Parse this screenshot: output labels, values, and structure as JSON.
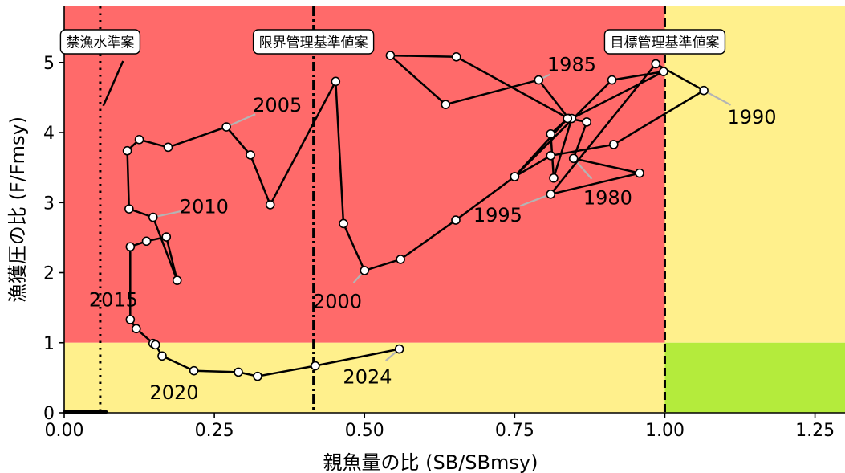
{
  "chart_data": {
    "type": "line",
    "xlabel": "親魚量の比 (SB/SBmsy)",
    "ylabel": "漁獲圧の比 (F/Fmsy)",
    "xlim": [
      0,
      1.3
    ],
    "ylim": [
      0,
      5.8
    ],
    "xticks": [
      0.0,
      0.25,
      0.5,
      0.75,
      1.0,
      1.25
    ],
    "xtick_labels": [
      "0.00",
      "0.25",
      "0.50",
      "0.75",
      "1.00",
      "1.25"
    ],
    "yticks": [
      0,
      1,
      2,
      3,
      4,
      5
    ],
    "ytick_labels": [
      "0",
      "1",
      "2",
      "3",
      "4",
      "5"
    ],
    "colors": {
      "red_zone": "#ff6a6a",
      "yellow_zone": "#fff08c",
      "green_zone": "#b4eb3c",
      "line": "#000000",
      "marker_fill": "#ffffff",
      "leader": "#b4b4b4"
    },
    "reference_lines": [
      {
        "name": "ban-line",
        "x": 0.06,
        "style": "dotted",
        "label": "禁漁水準案"
      },
      {
        "name": "limit-line",
        "x": 0.415,
        "style": "dashdot",
        "label": "限界管理基準値案"
      },
      {
        "name": "target-line",
        "x": 1.0,
        "style": "dashed",
        "label": "目標管理基準値案"
      }
    ],
    "series": [
      {
        "points": [
          [
            0.84,
            4.2
          ],
          [
            0.79,
            4.75
          ],
          [
            0.635,
            4.4
          ],
          [
            0.543,
            5.1
          ],
          [
            0.653,
            5.08
          ],
          [
            0.84,
            4.2
          ],
          [
            0.87,
            4.15
          ],
          [
            0.848,
            3.63
          ],
          [
            0.958,
            3.42
          ],
          [
            0.81,
            3.12
          ],
          [
            0.985,
            4.98
          ],
          [
            1.065,
            4.6
          ],
          [
            0.915,
            3.83
          ],
          [
            0.81,
            3.67
          ],
          [
            0.75,
            3.37
          ],
          [
            0.912,
            4.75
          ],
          [
            0.998,
            4.87
          ],
          [
            0.845,
            4.2
          ],
          [
            0.815,
            3.35
          ],
          [
            0.81,
            3.98
          ],
          [
            0.838,
            4.2
          ],
          [
            0.75,
            3.37
          ],
          [
            0.652,
            2.75
          ],
          [
            0.56,
            2.19
          ],
          [
            0.5,
            2.03
          ],
          [
            0.465,
            2.7
          ],
          [
            0.452,
            4.73
          ],
          [
            0.343,
            2.97
          ],
          [
            0.31,
            3.68
          ],
          [
            0.27,
            4.08
          ],
          [
            0.173,
            3.79
          ],
          [
            0.125,
            3.9
          ],
          [
            0.105,
            3.74
          ],
          [
            0.108,
            2.91
          ],
          [
            0.148,
            2.79
          ],
          [
            0.188,
            1.89
          ],
          [
            0.17,
            2.51
          ],
          [
            0.137,
            2.45
          ],
          [
            0.11,
            2.37
          ],
          [
            0.11,
            1.33
          ],
          [
            0.12,
            1.2
          ],
          [
            0.148,
            0.99
          ],
          [
            0.152,
            0.97
          ],
          [
            0.163,
            0.81
          ],
          [
            0.216,
            0.6
          ],
          [
            0.29,
            0.58
          ],
          [
            0.322,
            0.52
          ],
          [
            0.418,
            0.67
          ],
          [
            0.558,
            0.91
          ]
        ]
      }
    ],
    "stray_segment": [
      [
        0.065,
        4.38
      ],
      [
        0.098,
        5.02
      ]
    ],
    "annotations": [
      {
        "label": "1980",
        "point": [
          0.848,
          3.63
        ],
        "text_at": [
          0.905,
          3.08
        ]
      },
      {
        "label": "1985",
        "point": [
          0.79,
          4.75
        ],
        "text_at": [
          0.845,
          4.98
        ]
      },
      {
        "label": "1990",
        "point": [
          1.065,
          4.6
        ],
        "text_at": [
          1.145,
          4.23
        ]
      },
      {
        "label": "1995",
        "point": [
          0.81,
          3.12
        ],
        "text_at": [
          0.722,
          2.83
        ]
      },
      {
        "label": "2000",
        "point": [
          0.5,
          2.03
        ],
        "text_at": [
          0.455,
          1.6
        ]
      },
      {
        "label": "2005",
        "point": [
          0.27,
          4.08
        ],
        "text_at": [
          0.355,
          4.4
        ]
      },
      {
        "label": "2010",
        "point": [
          0.148,
          2.79
        ],
        "text_at": [
          0.233,
          2.95
        ]
      },
      {
        "label": "2015",
        "point": [
          0.11,
          1.33
        ],
        "text_at": [
          0.082,
          1.62
        ]
      },
      {
        "label": "2020",
        "point": null,
        "text_at": [
          0.183,
          0.3
        ]
      },
      {
        "label": "2024",
        "point": [
          0.558,
          0.91
        ],
        "text_at": [
          0.505,
          0.52
        ]
      }
    ]
  }
}
